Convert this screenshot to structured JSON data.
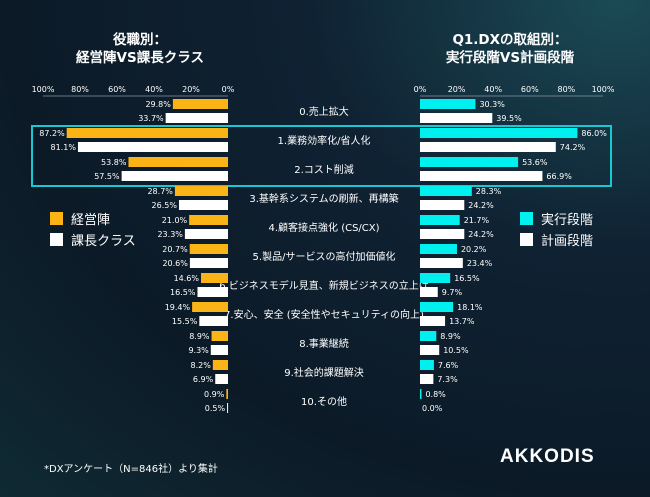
{
  "left_title": [
    "役職別：",
    "経営陣VS課長クラス"
  ],
  "right_title": [
    "Q1.DXの取組別：",
    "実行段階VS計画段階"
  ],
  "footnote": "*DXアンケート（N=846社）より集計",
  "logo": "AKKODIS",
  "colors": {
    "orange": "#fbb416",
    "white": "#ffffff",
    "cyan": "#00f0f0",
    "highlight": "#19c8d2"
  },
  "chart_data": [
    {
      "type": "bar",
      "orientation": "horizontal-reversed",
      "xlim": [
        0,
        100
      ],
      "tick_labels": [
        "100%",
        "80%",
        "60%",
        "40%",
        "20%",
        "0%"
      ],
      "categories": [
        "0.売上拡大",
        "1.業務効率化/省人化",
        "2.コスト削減",
        "3.基幹系システムの刷新、再構築",
        "4.顧客接点強化 (CS/CX)",
        "5.製品/サービスの高付加価値化",
        "6.ビジネスモデル見直、新規ビジネスの立上げ",
        "7.安心、安全 (安全性やセキュリティの向上)",
        "8.事業継続",
        "9.社会的課題解決",
        "10.その他"
      ],
      "series": [
        {
          "name": "経営陣",
          "color": "#fbb416",
          "values": [
            29.8,
            87.2,
            53.8,
            28.7,
            21.0,
            20.7,
            14.6,
            19.4,
            8.9,
            8.2,
            0.9
          ]
        },
        {
          "name": "課長クラス",
          "color": "#ffffff",
          "values": [
            33.7,
            81.1,
            57.5,
            26.5,
            23.3,
            20.6,
            16.5,
            15.5,
            9.3,
            6.9,
            0.5
          ]
        }
      ],
      "highlighted_categories": [
        "1.業務効率化/省人化",
        "2.コスト削減"
      ]
    },
    {
      "type": "bar",
      "orientation": "horizontal",
      "xlim": [
        0,
        100
      ],
      "tick_labels": [
        "0%",
        "20%",
        "40%",
        "60%",
        "80%",
        "100%"
      ],
      "series": [
        {
          "name": "実行段階",
          "color": "#00f0f0",
          "values": [
            30.3,
            86.0,
            53.6,
            28.3,
            21.7,
            20.2,
            16.5,
            18.1,
            8.9,
            7.6,
            0.8
          ]
        },
        {
          "name": "計画段階",
          "color": "#ffffff",
          "values": [
            39.5,
            74.2,
            66.9,
            24.2,
            24.2,
            23.4,
            9.7,
            13.7,
            10.5,
            7.3,
            0.0
          ]
        }
      ]
    }
  ]
}
